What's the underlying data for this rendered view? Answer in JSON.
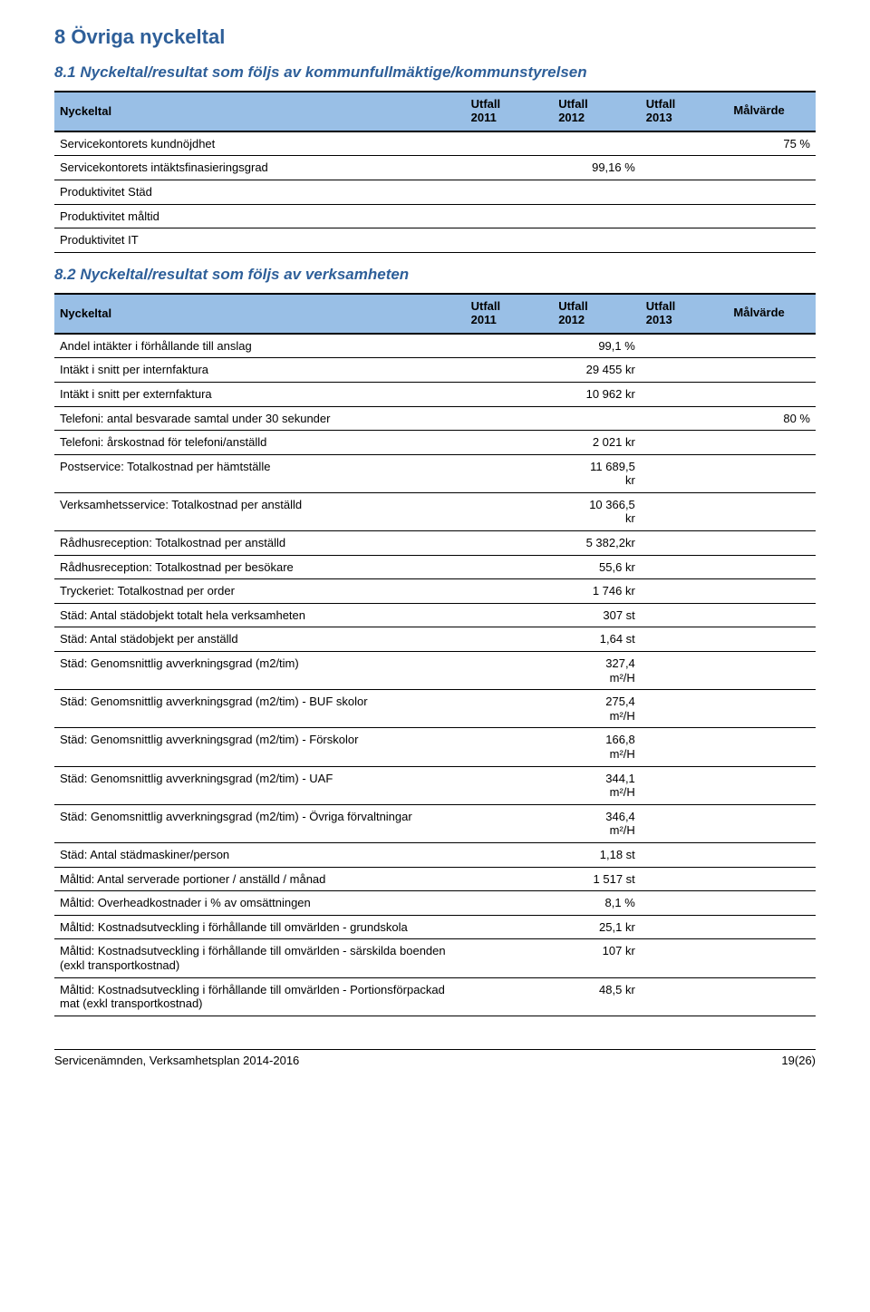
{
  "page": {
    "heading": "8 Övriga nyckeltal",
    "footer_left": "Servicenämnden, Verksamhetsplan 2014-2016",
    "footer_right": "19(26)"
  },
  "colors": {
    "heading_color": "#2e5f99",
    "table_header_bg": "#99bfe6",
    "border_color": "#000000",
    "page_bg": "#ffffff",
    "text_color": "#000000"
  },
  "typography": {
    "heading_fontsize_pt": 17,
    "subheading_fontsize_pt": 13,
    "body_fontsize_pt": 10,
    "font_family": "Arial"
  },
  "table1": {
    "title": "8.1 Nyckeltal/resultat som följs av kommunfullmäktige/kommunstyrelsen",
    "columns": {
      "label": "Nyckeltal",
      "c1a": "Utfall",
      "c1b": "2011",
      "c2a": "Utfall",
      "c2b": "2012",
      "c3a": "Utfall",
      "c3b": "2013",
      "c4": "Målvärde"
    },
    "rows": [
      {
        "label": "Servicekontorets kundnöjdhet",
        "u2011": "",
        "u2012": "",
        "u2013": "",
        "mal": "75 %"
      },
      {
        "label": "Servicekontorets intäktsfinasieringsgrad",
        "u2011": "",
        "u2012": "99,16 %",
        "u2013": "",
        "mal": ""
      },
      {
        "label": "Produktivitet Städ",
        "u2011": "",
        "u2012": "",
        "u2013": "",
        "mal": ""
      },
      {
        "label": "Produktivitet måltid",
        "u2011": "",
        "u2012": "",
        "u2013": "",
        "mal": ""
      },
      {
        "label": "Produktivitet IT",
        "u2011": "",
        "u2012": "",
        "u2013": "",
        "mal": ""
      }
    ]
  },
  "table2": {
    "title": "8.2 Nyckeltal/resultat som följs av verksamheten",
    "columns": {
      "label": "Nyckeltal",
      "c1a": "Utfall",
      "c1b": "2011",
      "c2a": "Utfall",
      "c2b": "2012",
      "c3a": "Utfall",
      "c3b": "2013",
      "c4": "Målvärde"
    },
    "rows": [
      {
        "label": "Andel intäkter i förhållande till anslag",
        "u2011": "",
        "u2012": "99,1 %",
        "u2013": "",
        "mal": ""
      },
      {
        "label": "Intäkt i snitt per internfaktura",
        "u2011": "",
        "u2012": "29 455 kr",
        "u2013": "",
        "mal": ""
      },
      {
        "label": "Intäkt i snitt per externfaktura",
        "u2011": "",
        "u2012": "10 962 kr",
        "u2013": "",
        "mal": ""
      },
      {
        "label": "Telefoni: antal besvarade samtal under 30 sekunder",
        "u2011": "",
        "u2012": "",
        "u2013": "",
        "mal": "80 %"
      },
      {
        "label": "Telefoni: årskostnad för telefoni/anställd",
        "u2011": "",
        "u2012": "2 021 kr",
        "u2013": "",
        "mal": ""
      },
      {
        "label": "Postservice: Totalkostnad per hämtställe",
        "u2011": "",
        "u2012": "11 689,5\nkr",
        "u2013": "",
        "mal": "",
        "multiline": true
      },
      {
        "label": "Verksamhetsservice: Totalkostnad per anställd",
        "u2011": "",
        "u2012": "10 366,5\nkr",
        "u2013": "",
        "mal": "",
        "multiline": true
      },
      {
        "label": "Rådhusreception: Totalkostnad per anställd",
        "u2011": "",
        "u2012": "5 382,2kr",
        "u2013": "",
        "mal": ""
      },
      {
        "label": "Rådhusreception: Totalkostnad per besökare",
        "u2011": "",
        "u2012": "55,6 kr",
        "u2013": "",
        "mal": ""
      },
      {
        "label": "Tryckeriet: Totalkostnad per order",
        "u2011": "",
        "u2012": "1 746 kr",
        "u2013": "",
        "mal": ""
      },
      {
        "label": "Städ: Antal städobjekt totalt hela verksamheten",
        "u2011": "",
        "u2012": "307 st",
        "u2013": "",
        "mal": ""
      },
      {
        "label": "Städ: Antal städobjekt per anställd",
        "u2011": "",
        "u2012": "1,64 st",
        "u2013": "",
        "mal": ""
      },
      {
        "label": "Städ: Genomsnittlig avverkningsgrad (m2/tim)",
        "u2011": "",
        "u2012": "327,4\nm²/H",
        "u2013": "",
        "mal": "",
        "multiline": true
      },
      {
        "label": "Städ: Genomsnittlig avverkningsgrad (m2/tim) - BUF skolor",
        "u2011": "",
        "u2012": "275,4\nm²/H",
        "u2013": "",
        "mal": "",
        "multiline": true
      },
      {
        "label": "Städ: Genomsnittlig avverkningsgrad (m2/tim) - Förskolor",
        "u2011": "",
        "u2012": "166,8\nm²/H",
        "u2013": "",
        "mal": "",
        "multiline": true
      },
      {
        "label": "Städ: Genomsnittlig avverkningsgrad (m2/tim) - UAF",
        "u2011": "",
        "u2012": "344,1\nm²/H",
        "u2013": "",
        "mal": "",
        "multiline": true
      },
      {
        "label": "Städ: Genomsnittlig avverkningsgrad (m2/tim) - Övriga förvaltningar",
        "u2011": "",
        "u2012": "346,4\nm²/H",
        "u2013": "",
        "mal": "",
        "multiline": true
      },
      {
        "label": "Städ: Antal städmaskiner/person",
        "u2011": "",
        "u2012": "1,18 st",
        "u2013": "",
        "mal": ""
      },
      {
        "label": "Måltid: Antal serverade portioner / anställd / månad",
        "u2011": "",
        "u2012": "1 517 st",
        "u2013": "",
        "mal": ""
      },
      {
        "label": "Måltid: Overheadkostnader i % av omsättningen",
        "u2011": "",
        "u2012": "8,1 %",
        "u2013": "",
        "mal": ""
      },
      {
        "label": "Måltid: Kostnadsutveckling i förhållande till omvärlden - grundskola",
        "u2011": "",
        "u2012": "25,1 kr",
        "u2013": "",
        "mal": ""
      },
      {
        "label": "Måltid: Kostnadsutveckling i förhållande till omvärlden - särskilda boenden (exkl transportkostnad)",
        "u2011": "",
        "u2012": "107 kr",
        "u2013": "",
        "mal": ""
      },
      {
        "label": "Måltid: Kostnadsutveckling i förhållande till omvärlden - Portionsförpackad mat (exkl transportkostnad)",
        "u2011": "",
        "u2012": "48,5 kr",
        "u2013": "",
        "mal": ""
      }
    ]
  }
}
